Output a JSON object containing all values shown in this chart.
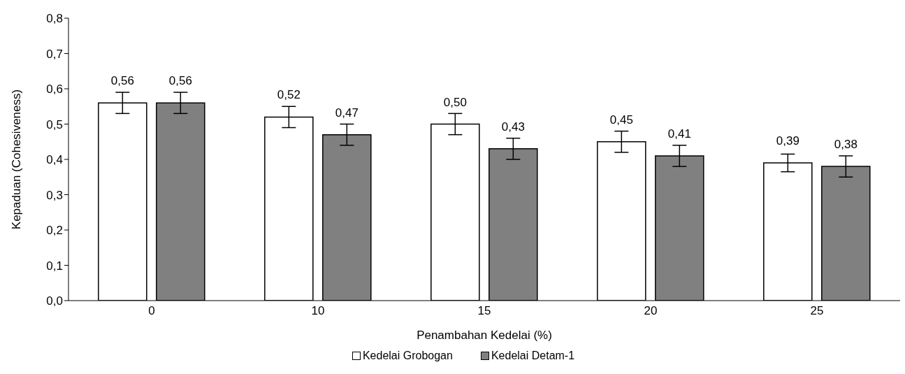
{
  "chart_data": {
    "type": "bar",
    "xlabel": "Penambahan Kedelai (%)",
    "ylabel": "Kepaduan (Cohesiveness)",
    "categories": [
      "0",
      "10",
      "15",
      "20",
      "25"
    ],
    "series": [
      {
        "name": "Kedelai Grobogan",
        "color": "#ffffff",
        "values": [
          0.56,
          0.52,
          0.5,
          0.45,
          0.39
        ],
        "errors": [
          0.03,
          0.03,
          0.03,
          0.03,
          0.025
        ],
        "value_labels": [
          "0,56",
          "0,52",
          "0,50",
          "0,45",
          "0,39"
        ]
      },
      {
        "name": "Kedelai Detam-1",
        "color": "#808080",
        "values": [
          0.56,
          0.47,
          0.43,
          0.41,
          0.38
        ],
        "errors": [
          0.03,
          0.03,
          0.03,
          0.03,
          0.03
        ],
        "value_labels": [
          "0,56",
          "0,47",
          "0,43",
          "0,41",
          "0,38"
        ]
      }
    ],
    "ylim": [
      0,
      0.8
    ],
    "yticks": [
      {
        "value": 0,
        "label": "0,0"
      },
      {
        "value": 0.1,
        "label": "0,1"
      },
      {
        "value": 0.2,
        "label": "0,2"
      },
      {
        "value": 0.3,
        "label": "0,3"
      },
      {
        "value": 0.4,
        "label": "0,4"
      },
      {
        "value": 0.5,
        "label": "0,5"
      },
      {
        "value": 0.6,
        "label": "0,6"
      },
      {
        "value": 0.7,
        "label": "0,7"
      },
      {
        "value": 0.8,
        "label": "0,8"
      }
    ],
    "grid": false,
    "legend": "bottom"
  }
}
